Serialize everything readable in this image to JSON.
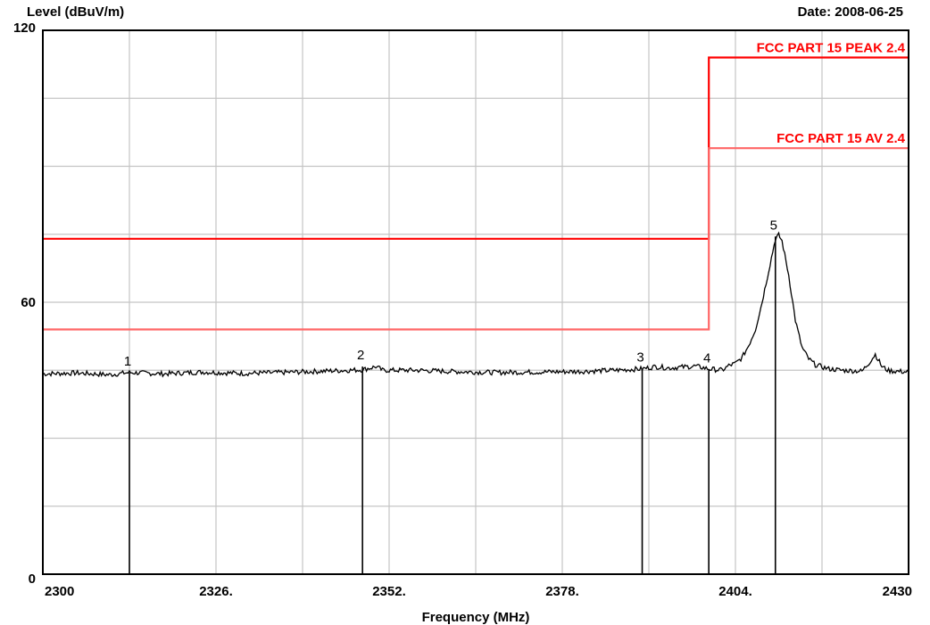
{
  "chart_data": {
    "type": "line",
    "ylabel": "Level (dBuV/m)",
    "xlabel": "Frequency (MHz)",
    "date": "Date: 2008-06-25",
    "xlim": [
      2300,
      2430
    ],
    "ylim": [
      0,
      120
    ],
    "x_ticks": [
      {
        "value": 2300,
        "label": "2300"
      },
      {
        "value": 2326,
        "label": "2326."
      },
      {
        "value": 2352,
        "label": "2352."
      },
      {
        "value": 2378,
        "label": "2378."
      },
      {
        "value": 2404,
        "label": "2404."
      },
      {
        "value": 2430,
        "label": "2430"
      }
    ],
    "y_ticks": [
      {
        "value": 0,
        "label": "0"
      },
      {
        "value": 60,
        "label": "60"
      },
      {
        "value": 120,
        "label": "120"
      }
    ],
    "grid": true,
    "limit_lines": [
      {
        "name": "FCC PART 15 PEAK 2.4",
        "color": "#ff0000",
        "points": [
          [
            2300,
            74
          ],
          [
            2400,
            74
          ],
          [
            2400,
            114
          ],
          [
            2430,
            114
          ]
        ]
      },
      {
        "name": "FCC PART 15  AV 2.4",
        "color": "#ff6666",
        "points": [
          [
            2300,
            54
          ],
          [
            2400,
            54
          ],
          [
            2400,
            94
          ],
          [
            2430,
            94
          ]
        ]
      }
    ],
    "series": [
      {
        "color": "#000000",
        "points": [
          [
            2300,
            44.2
          ],
          [
            2305,
            44.4
          ],
          [
            2310,
            44.0
          ],
          [
            2313,
            44.5
          ],
          [
            2318,
            44.2
          ],
          [
            2324,
            44.6
          ],
          [
            2330,
            44.3
          ],
          [
            2336,
            44.5
          ],
          [
            2342,
            44.8
          ],
          [
            2348,
            45.1
          ],
          [
            2350,
            45.8
          ],
          [
            2351,
            45.0
          ],
          [
            2356,
            45.0
          ],
          [
            2362,
            44.7
          ],
          [
            2368,
            44.5
          ],
          [
            2374,
            44.6
          ],
          [
            2380,
            44.7
          ],
          [
            2386,
            45.0
          ],
          [
            2390,
            45.3
          ],
          [
            2392,
            45.8
          ],
          [
            2394,
            45.5
          ],
          [
            2396,
            45.7
          ],
          [
            2398,
            45.9
          ],
          [
            2400,
            45.3
          ],
          [
            2402,
            45.0
          ],
          [
            2403,
            46.0
          ],
          [
            2404,
            46.5
          ],
          [
            2405,
            47.8
          ],
          [
            2406,
            50.5
          ],
          [
            2407,
            54.0
          ],
          [
            2408,
            60.0
          ],
          [
            2409,
            67.0
          ],
          [
            2410,
            74.0
          ],
          [
            2410.5,
            74.8
          ],
          [
            2411,
            73.5
          ],
          [
            2412,
            66.0
          ],
          [
            2413,
            56.0
          ],
          [
            2414,
            50.0
          ],
          [
            2415,
            47.5
          ],
          [
            2416,
            46.2
          ],
          [
            2418,
            45.3
          ],
          [
            2420,
            45.0
          ],
          [
            2423,
            44.8
          ],
          [
            2424,
            46.5
          ],
          [
            2425,
            48.5
          ],
          [
            2426,
            45.8
          ],
          [
            2427,
            44.9
          ],
          [
            2430,
            44.6
          ]
        ]
      }
    ],
    "markers": [
      {
        "label": "1",
        "x": 2313,
        "y": 44.5
      },
      {
        "label": "2",
        "x": 2348,
        "y": 45.8
      },
      {
        "label": "3",
        "x": 2390,
        "y": 45.3
      },
      {
        "label": "4",
        "x": 2400,
        "y": 45.1
      },
      {
        "label": "5",
        "x": 2410,
        "y": 74.5
      }
    ]
  }
}
